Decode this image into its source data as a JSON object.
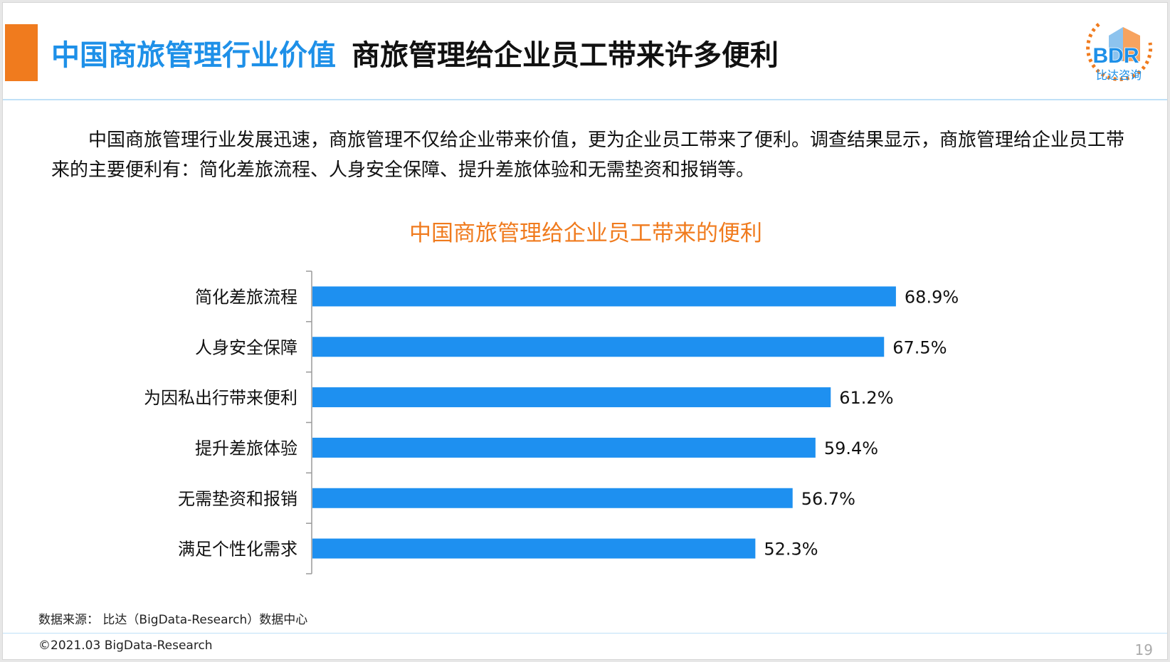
{
  "header": {
    "title_main": "中国商旅管理行业价值",
    "title_sub": "商旅管理给企业员工带来许多便利"
  },
  "logo": {
    "letters": "BDR",
    "caption": "比达咨询",
    "colors": [
      "#f07b1e",
      "#1e90e8"
    ]
  },
  "intro": "中国商旅管理行业发展迅速，商旅管理不仅给企业带来价值，更为企业员工带来了便利。调查结果显示，商旅管理给企业员工带来的主要便利有：简化差旅流程、人身安全保障、提升差旅体验和无需垫资和报销等。",
  "chart_data": {
    "type": "bar",
    "orientation": "horizontal",
    "title": "中国商旅管理给企业员工带来的便利",
    "categories": [
      "简化差旅流程",
      "人身安全保障",
      "为因私出行带来便利",
      "提升差旅体验",
      "无需垫资和报销",
      "满足个性化需求"
    ],
    "values": [
      68.9,
      67.5,
      61.2,
      59.4,
      56.7,
      52.3
    ],
    "value_labels": [
      "68.9%",
      "67.5%",
      "61.2%",
      "59.4%",
      "56.7%",
      "52.3%"
    ],
    "unit": "%",
    "xlim": [
      0,
      100
    ],
    "bar_color": "#1e90f0",
    "grid": false,
    "legend": "none"
  },
  "source": "数据来源：  比达（BigData-Research）数据中心",
  "footer": {
    "copyright": "©2021.03 BigData-Research",
    "page_number": "19"
  },
  "colors": {
    "accent": "#f07b1e",
    "brand_blue": "#1e90e8"
  }
}
